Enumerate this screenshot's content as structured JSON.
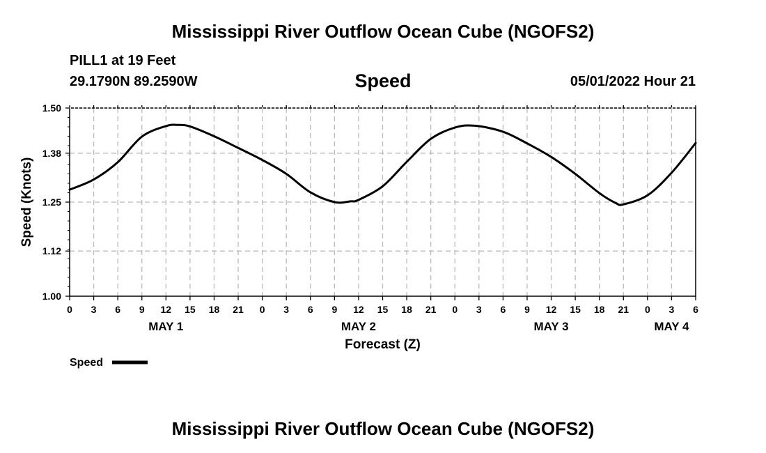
{
  "header": {
    "title": "Mississippi River Outflow Ocean Cube (NGOFS2)",
    "station": "PILL1 at 19 Feet",
    "coords": "29.1790N  89.2590W",
    "datetime": "05/01/2022 Hour 21"
  },
  "footer": {
    "title": "Mississippi River Outflow Ocean Cube (NGOFS2)"
  },
  "chart_data": {
    "type": "line",
    "title": "Speed",
    "xlabel": "Forecast (Z)",
    "ylabel": "Speed (Knots)",
    "xlim": [
      0,
      78
    ],
    "ylim": [
      1.0,
      1.5
    ],
    "yticks": [
      1.0,
      1.12,
      1.25,
      1.38,
      1.5
    ],
    "ytick_labels": [
      "1.00",
      "1.12",
      "1.25",
      "1.38",
      "1.50"
    ],
    "xtick_labels": [
      "0",
      "3",
      "6",
      "9",
      "12",
      "15",
      "18",
      "21",
      "0",
      "3",
      "6",
      "9",
      "12",
      "15",
      "18",
      "21",
      "0",
      "3",
      "6",
      "9",
      "12",
      "15",
      "18",
      "21",
      "0",
      "3",
      "6"
    ],
    "day_labels": [
      {
        "label": "MAY 1",
        "x": 12
      },
      {
        "label": "MAY 2",
        "x": 36
      },
      {
        "label": "MAY 3",
        "x": 60
      },
      {
        "label": "MAY 4",
        "x": 75
      }
    ],
    "grid": true,
    "legend": "bottom-left",
    "series": [
      {
        "name": "Speed",
        "color": "#000000",
        "x": [
          0,
          3,
          6,
          9,
          12,
          13.5,
          15,
          18,
          21,
          24,
          27,
          30,
          33,
          35,
          36,
          39,
          42,
          45,
          48,
          50.5,
          54,
          57,
          60,
          63,
          66,
          68,
          69,
          72,
          75,
          78
        ],
        "values": [
          1.283,
          1.31,
          1.356,
          1.424,
          1.452,
          1.455,
          1.451,
          1.425,
          1.394,
          1.362,
          1.325,
          1.276,
          1.25,
          1.252,
          1.256,
          1.292,
          1.357,
          1.418,
          1.448,
          1.453,
          1.437,
          1.406,
          1.37,
          1.325,
          1.274,
          1.248,
          1.244,
          1.268,
          1.328,
          1.407
        ]
      }
    ]
  }
}
